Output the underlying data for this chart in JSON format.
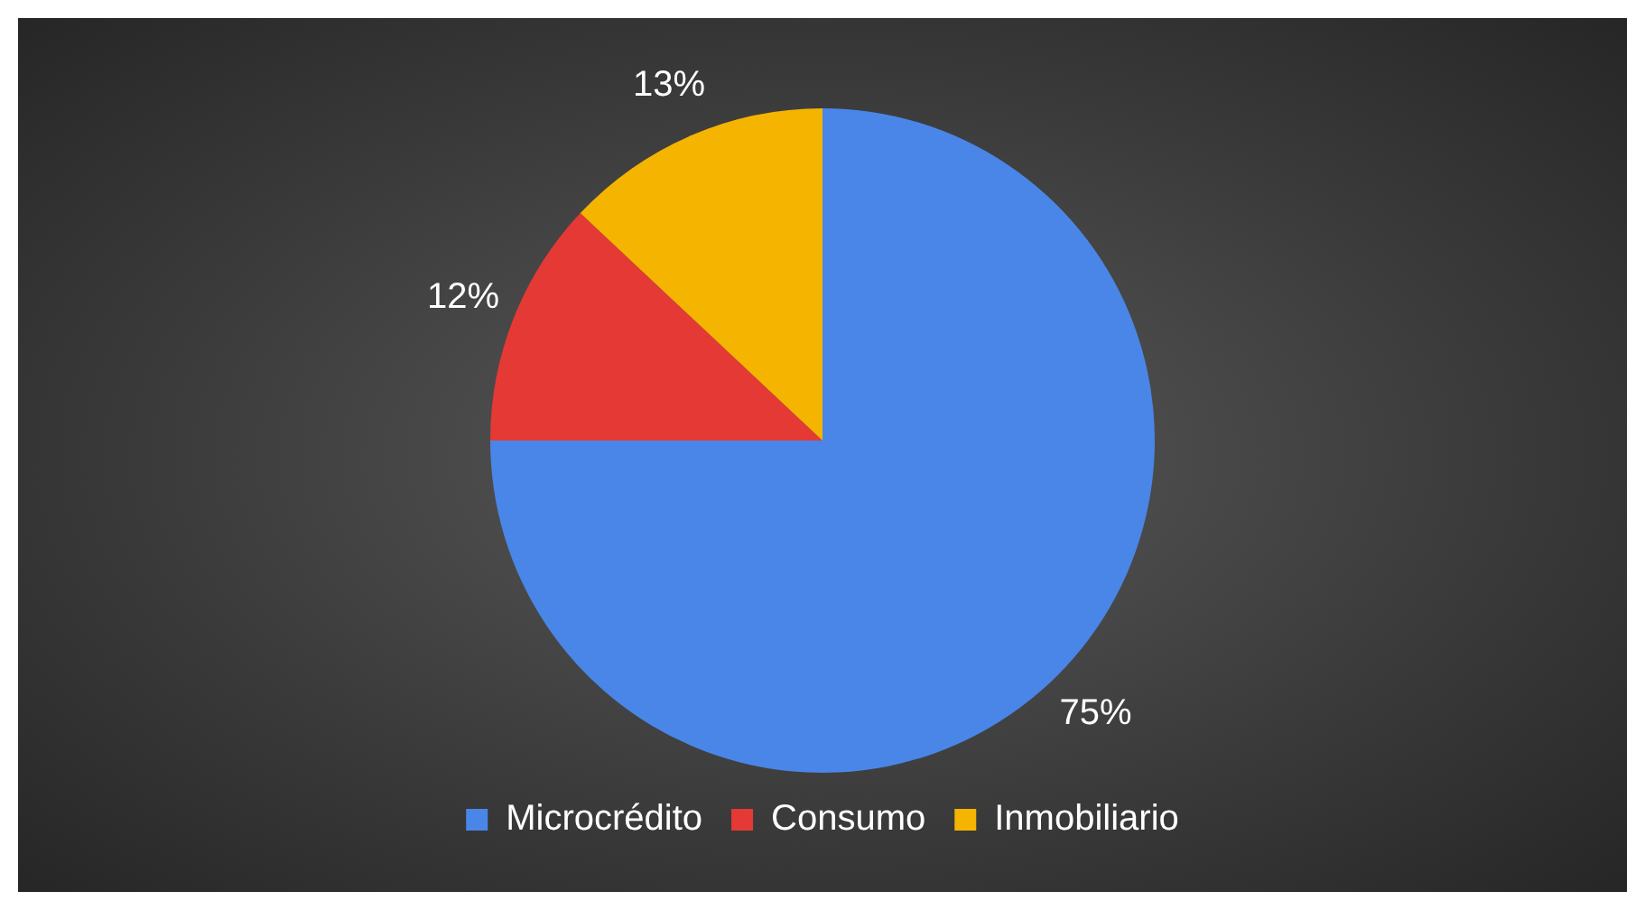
{
  "chart_data": {
    "type": "pie",
    "categories": [
      "Microcrédito",
      "Consumo",
      "Inmobiliario"
    ],
    "values": [
      75,
      12,
      13
    ],
    "colors": [
      "#4a86e8",
      "#e53935",
      "#f4b400"
    ],
    "value_labels": [
      "75%",
      "12%",
      "13%"
    ],
    "legend": "bottom"
  }
}
